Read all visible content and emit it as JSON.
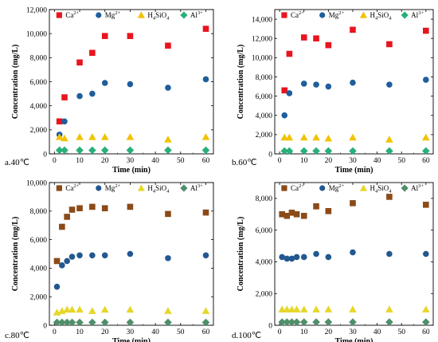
{
  "colors": {
    "Ca": "#e8141e",
    "Mg": "#1f5e9c",
    "H4SiO4": "#f2c200",
    "Al": "#28b07a",
    "Ca_dark": "#8b4a17",
    "Mg_dark": "#23588f",
    "H4SiO4_dark": "#e6d72a",
    "Al_dark": "#4f8f6a"
  },
  "chart_data": [
    {
      "type": "scatter",
      "panel_label": "a.40℃",
      "xlabel": "Time (min)",
      "ylabel": "Concentration (mg/L)",
      "xlim": [
        -2,
        63
      ],
      "ylim": [
        0,
        12000
      ],
      "xticks": [
        "0",
        "10",
        "20",
        "30",
        "40",
        "50",
        "60"
      ],
      "yticks": [
        "0",
        "2,000",
        "4,000",
        "6,000",
        "8,000",
        "10,000",
        "12,000"
      ],
      "grid": false,
      "legend": "top",
      "series": [
        {
          "name": "Ca2+",
          "marker": "square",
          "x": [
            2,
            4,
            10,
            15,
            20,
            30,
            45,
            60
          ],
          "y": [
            2700,
            4700,
            7600,
            8400,
            9800,
            9800,
            9000,
            10400
          ]
        },
        {
          "name": "Mg2+",
          "marker": "circle",
          "x": [
            2,
            4,
            10,
            15,
            20,
            30,
            45,
            60
          ],
          "y": [
            1600,
            2700,
            4800,
            5000,
            5900,
            5800,
            5500,
            6200
          ]
        },
        {
          "name": "H4SiO4",
          "marker": "triangle",
          "x": [
            2,
            4,
            10,
            15,
            20,
            30,
            45,
            60
          ],
          "y": [
            1400,
            1300,
            1400,
            1400,
            1400,
            1400,
            1200,
            1400
          ]
        },
        {
          "name": "Al3+",
          "marker": "diamond",
          "x": [
            2,
            4,
            10,
            15,
            20,
            30,
            45,
            60
          ],
          "y": [
            300,
            300,
            300,
            300,
            300,
            300,
            300,
            300
          ]
        }
      ]
    },
    {
      "type": "scatter",
      "panel_label": "b.60℃",
      "xlabel": "Time (min)",
      "ylabel": "Concentration (mg/L)",
      "xlim": [
        -2,
        63
      ],
      "ylim": [
        0,
        15000
      ],
      "xticks": [
        "0",
        "10",
        "20",
        "30",
        "40",
        "50",
        "60"
      ],
      "yticks": [
        "0",
        "2,000",
        "4,000",
        "6,000",
        "8,000",
        "10,000",
        "12,000",
        "14,000"
      ],
      "grid": false,
      "legend": "top",
      "series": [
        {
          "name": "Ca2+",
          "marker": "square",
          "x": [
            2,
            4,
            10,
            15,
            20,
            30,
            45,
            60
          ],
          "y": [
            6600,
            10400,
            12100,
            12000,
            11300,
            12900,
            11400,
            12800
          ]
        },
        {
          "name": "Mg2+",
          "marker": "circle",
          "x": [
            2,
            4,
            10,
            15,
            20,
            30,
            45,
            60
          ],
          "y": [
            4000,
            6300,
            7300,
            7200,
            7000,
            7400,
            7200,
            7700
          ]
        },
        {
          "name": "H4SiO4",
          "marker": "triangle",
          "x": [
            2,
            4,
            10,
            15,
            20,
            30,
            45,
            60
          ],
          "y": [
            1700,
            1700,
            1700,
            1700,
            1600,
            1700,
            1500,
            1700
          ]
        },
        {
          "name": "Al3+",
          "marker": "diamond",
          "x": [
            2,
            4,
            10,
            15,
            20,
            30,
            45,
            60
          ],
          "y": [
            300,
            300,
            300,
            300,
            300,
            300,
            300,
            300
          ]
        }
      ]
    },
    {
      "type": "scatter",
      "panel_label": "c.80℃",
      "xlabel": "Time (min)",
      "ylabel": "Concentration (mg/L)",
      "xlim": [
        -2,
        63
      ],
      "ylim": [
        0,
        10000
      ],
      "xticks": [
        "0",
        "10",
        "20",
        "30",
        "40",
        "50",
        "60"
      ],
      "yticks": [
        "0",
        "2,000",
        "4,000",
        "6,000",
        "8,000",
        "10,000"
      ],
      "grid": false,
      "legend": "top",
      "series": [
        {
          "name": "Ca2+",
          "marker": "square",
          "x": [
            1,
            3,
            5,
            7,
            10,
            15,
            20,
            30,
            45,
            60
          ],
          "y": [
            4500,
            6900,
            7600,
            8100,
            8200,
            8300,
            8200,
            8300,
            7800,
            7900
          ]
        },
        {
          "name": "Mg2+",
          "marker": "circle",
          "x": [
            1,
            3,
            5,
            7,
            10,
            15,
            20,
            30,
            45,
            60
          ],
          "y": [
            2700,
            4200,
            4500,
            4800,
            4900,
            4900,
            4900,
            5000,
            4700,
            4900
          ]
        },
        {
          "name": "H4SiO4",
          "marker": "triangle",
          "x": [
            1,
            3,
            5,
            7,
            10,
            15,
            20,
            30,
            45,
            60
          ],
          "y": [
            900,
            1000,
            1100,
            1100,
            1100,
            1000,
            1100,
            1100,
            1000,
            1000
          ]
        },
        {
          "name": "Al3+",
          "marker": "diamond",
          "x": [
            1,
            3,
            5,
            7,
            10,
            15,
            20,
            30,
            45,
            60
          ],
          "y": [
            200,
            200,
            200,
            200,
            200,
            200,
            200,
            200,
            200,
            200
          ]
        }
      ]
    },
    {
      "type": "scatter",
      "panel_label": "d.100℃",
      "xlabel": "Time (min)",
      "ylabel": "Concentration (mg/L)",
      "xlim": [
        -2,
        63
      ],
      "ylim": [
        0,
        9000
      ],
      "xticks": [
        "0",
        "10",
        "20",
        "30",
        "40",
        "50",
        "60"
      ],
      "yticks": [
        "0",
        "2,000",
        "4,000",
        "6,000",
        "8,000"
      ],
      "grid": false,
      "legend": "top",
      "series": [
        {
          "name": "Ca2+",
          "marker": "square",
          "x": [
            1,
            3,
            5,
            7,
            10,
            15,
            20,
            30,
            45,
            60
          ],
          "y": [
            7000,
            6900,
            7100,
            7000,
            6900,
            7500,
            7200,
            7700,
            8100,
            7600
          ]
        },
        {
          "name": "Mg2+",
          "marker": "circle",
          "x": [
            1,
            3,
            5,
            7,
            10,
            15,
            20,
            30,
            45,
            60
          ],
          "y": [
            4300,
            4200,
            4200,
            4300,
            4300,
            4500,
            4300,
            4600,
            4500,
            4500
          ]
        },
        {
          "name": "H4SiO4",
          "marker": "triangle",
          "x": [
            1,
            3,
            5,
            7,
            10,
            15,
            20,
            30,
            45,
            60
          ],
          "y": [
            1000,
            1000,
            1000,
            1000,
            1000,
            1000,
            1000,
            1000,
            1000,
            1000
          ]
        },
        {
          "name": "Al3+",
          "marker": "diamond",
          "x": [
            1,
            3,
            5,
            7,
            10,
            15,
            20,
            30,
            45,
            60
          ],
          "y": [
            200,
            200,
            200,
            200,
            200,
            200,
            200,
            200,
            200,
            200
          ]
        }
      ]
    }
  ]
}
